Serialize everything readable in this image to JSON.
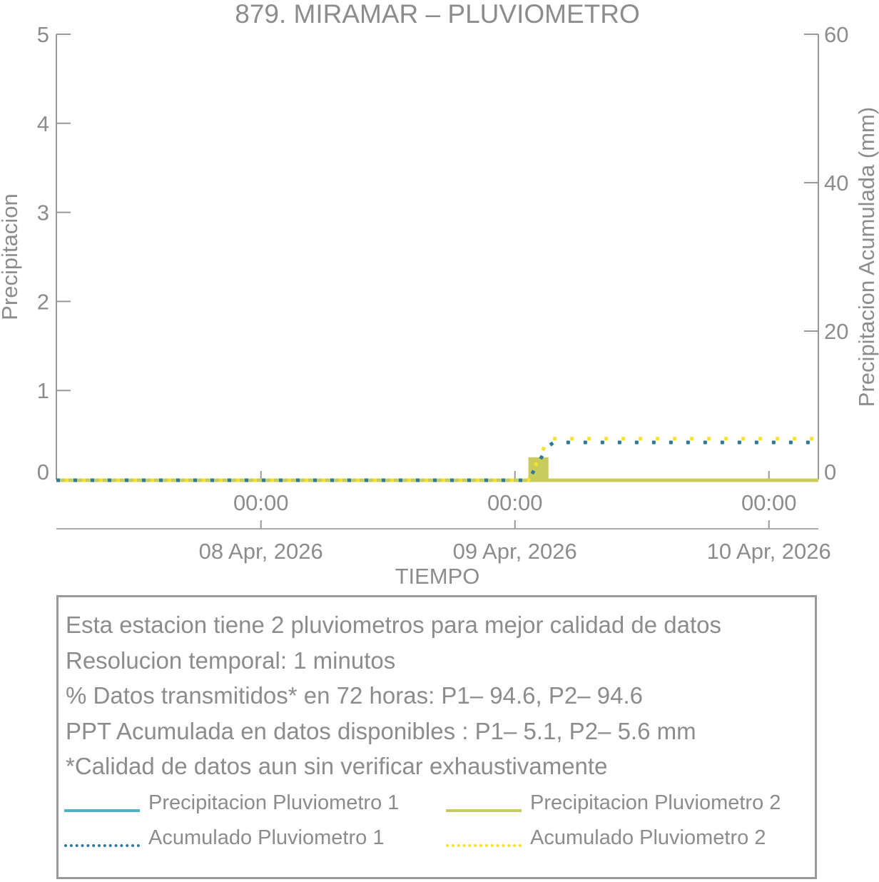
{
  "chart_data": {
    "type": "bar",
    "title": "879. MIRAMAR – PLUVIOMETRO",
    "xlabel": "TIEMPO",
    "ylabel": "Precipitacion",
    "ylabel_right": "Precipitacion Acumulada (mm)",
    "ylim": [
      0,
      5
    ],
    "ylim_right": [
      0,
      60
    ],
    "yticks": [
      "0",
      "1",
      "2",
      "3",
      "4",
      "5"
    ],
    "yticks_right": [
      "0",
      "20",
      "40",
      "60"
    ],
    "x_unit": "hours since 07 Apr 2026 04:40",
    "xlim": [
      0,
      72
    ],
    "xticks": [
      {
        "x": 19.33,
        "time": "00:00",
        "date": "08 Apr, 2026"
      },
      {
        "x": 43.33,
        "time": "00:00",
        "date": "09 Apr, 2026"
      },
      {
        "x": 67.33,
        "time": "00:00",
        "date": "10 Apr, 2026"
      }
    ],
    "series": [
      {
        "name": "Precipitacion Pluviometro 1",
        "color": "#4fb3c4",
        "style": "solid",
        "x": [
          0,
          72
        ],
        "y": [
          0,
          0
        ]
      },
      {
        "name": "Precipitacion Pluviometro 2",
        "color": "#c8cc5c",
        "style": "bar",
        "x": [
          0,
          44.6,
          44.6,
          46.5,
          46.5,
          72
        ],
        "y": [
          0,
          0,
          0.25,
          0.25,
          0,
          0
        ]
      },
      {
        "name": "Acumulado Pluviometro 1",
        "color": "#2e7a99",
        "style": "dotted",
        "x": [
          0,
          44.6,
          45.2,
          45.8,
          46.4,
          47,
          72
        ],
        "y": [
          0,
          0,
          1.5,
          3.0,
          4.5,
          5.1,
          5.1
        ]
      },
      {
        "name": "Acumulado Pluviometro 2",
        "color": "#f5e12a",
        "style": "dotted",
        "x": [
          0,
          44.6,
          45.2,
          45.8,
          46.3,
          46.6,
          72
        ],
        "y": [
          0,
          0,
          1.8,
          3.6,
          5.0,
          5.6,
          5.6
        ]
      }
    ]
  },
  "info": {
    "lines": [
      "Esta estacion tiene 2 pluviometros para mejor calidad de datos",
      "Resolucion temporal: 1 minutos",
      "% Datos transmitidos* en 72 horas: P1– 94.6, P2– 94.6",
      "PPT Acumulada en datos disponibles : P1–  5.1, P2–  5.6 mm",
      "*Calidad de datos aun sin verificar exhaustivamente"
    ]
  }
}
